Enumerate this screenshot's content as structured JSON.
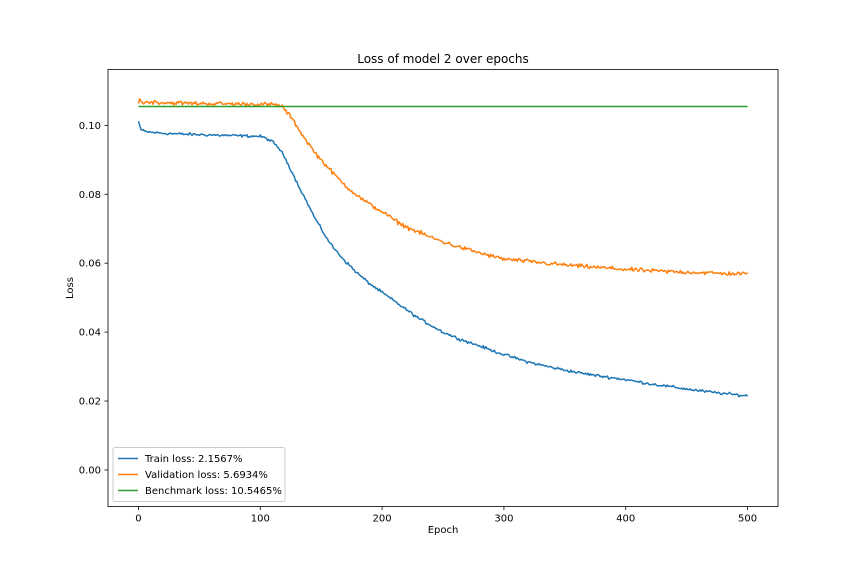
{
  "chart_data": {
    "type": "line",
    "title": "Loss of model 2 over epochs",
    "xlabel": "Epoch",
    "ylabel": "Loss",
    "xlim": [
      -25,
      525
    ],
    "ylim": [
      -0.0106,
      0.1162
    ],
    "xticks": [
      0,
      100,
      200,
      300,
      400,
      500
    ],
    "xtick_labels": [
      "0",
      "100",
      "200",
      "300",
      "400",
      "500"
    ],
    "yticks": [
      0.0,
      0.02,
      0.04,
      0.06,
      0.08,
      0.1
    ],
    "ytick_labels": [
      "0.00",
      "0.02",
      "0.04",
      "0.06",
      "0.08",
      "0.10"
    ],
    "grid": false,
    "legend_position": "lower-left",
    "series": [
      {
        "name": "Train loss: 2.1567%",
        "color": "#1f77b4",
        "noise": 0.0006,
        "x": [
          0,
          2,
          5,
          10,
          20,
          40,
          60,
          80,
          100,
          105,
          110,
          115,
          120,
          125,
          130,
          135,
          140,
          145,
          150,
          155,
          160,
          170,
          180,
          190,
          200,
          210,
          220,
          230,
          240,
          250,
          260,
          270,
          280,
          290,
          300,
          320,
          340,
          360,
          380,
          400,
          420,
          440,
          460,
          480,
          500
        ],
        "y": [
          0.1012,
          0.0988,
          0.0982,
          0.098,
          0.0977,
          0.0974,
          0.0972,
          0.097,
          0.0968,
          0.0962,
          0.0952,
          0.0935,
          0.0908,
          0.0872,
          0.0835,
          0.08,
          0.0765,
          0.073,
          0.07,
          0.067,
          0.0645,
          0.0605,
          0.057,
          0.054,
          0.0515,
          0.049,
          0.0465,
          0.044,
          0.042,
          0.04,
          0.0385,
          0.0372,
          0.036,
          0.0347,
          0.0335,
          0.0313,
          0.0297,
          0.0283,
          0.0272,
          0.0262,
          0.025,
          0.024,
          0.023,
          0.0222,
          0.0215
        ]
      },
      {
        "name": "Validation loss: 5.6934%",
        "color": "#ff7f0e",
        "noise": 0.0009,
        "x": [
          0,
          1,
          2,
          4,
          10,
          20,
          40,
          60,
          80,
          100,
          110,
          115,
          118,
          120,
          125,
          130,
          135,
          140,
          145,
          150,
          160,
          170,
          180,
          190,
          200,
          210,
          220,
          230,
          240,
          250,
          260,
          270,
          280,
          290,
          300,
          320,
          340,
          360,
          380,
          400,
          420,
          440,
          460,
          480,
          500
        ],
        "y": [
          0.1063,
          0.1077,
          0.107,
          0.1066,
          0.1068,
          0.1066,
          0.1064,
          0.1063,
          0.1062,
          0.1061,
          0.106,
          0.1058,
          0.1055,
          0.1045,
          0.1025,
          0.0998,
          0.097,
          0.0945,
          0.092,
          0.09,
          0.086,
          0.0825,
          0.0795,
          0.077,
          0.075,
          0.0725,
          0.0705,
          0.069,
          0.0675,
          0.0662,
          0.065,
          0.064,
          0.063,
          0.062,
          0.0612,
          0.0605,
          0.0598,
          0.0592,
          0.0587,
          0.0582,
          0.0578,
          0.0575,
          0.0573,
          0.057,
          0.0569
        ]
      },
      {
        "name": "Benchmark loss: 10.5465%",
        "color": "#2ca02c",
        "noise": 0,
        "x": [
          0,
          500
        ],
        "y": [
          0.105465,
          0.105465
        ]
      }
    ]
  }
}
